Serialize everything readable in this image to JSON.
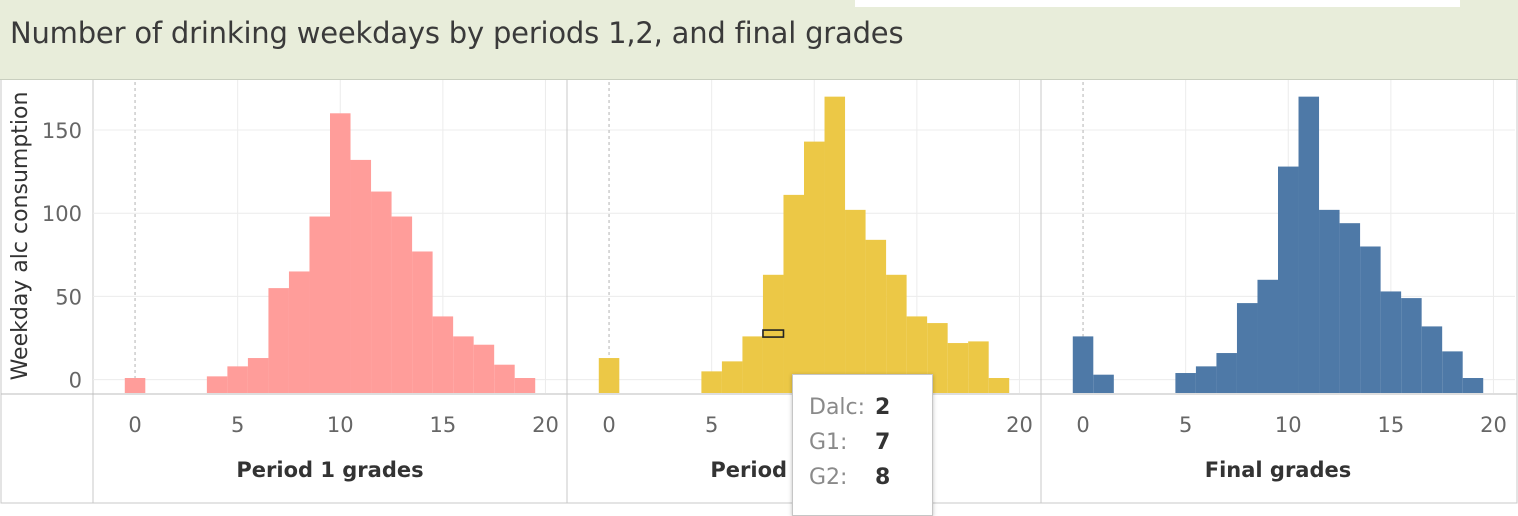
{
  "title": "Number of drinking weekdays by periods 1,2, and final grades",
  "colors": {
    "period1": "#ff9d9a",
    "period2": "#ecc846",
    "final": "#4e79a7",
    "title_band": "#e8edda",
    "grid": "#ececec"
  },
  "tooltip": {
    "rows": [
      {
        "key": "Dalc:",
        "value": "2"
      },
      {
        "key": "G1:",
        "value": "7"
      },
      {
        "key": "G2:",
        "value": "8"
      }
    ]
  },
  "chart_data": {
    "type": "bar",
    "ylabel": "Weekday alc consumption",
    "yticks": [
      0,
      50,
      100,
      150
    ],
    "ylim": [
      -8,
      180
    ],
    "xticks": [
      0,
      5,
      10,
      15,
      20
    ],
    "xlim": [
      -2,
      21
    ],
    "bin_width": 1,
    "grid": true,
    "panels": [
      {
        "name": "Period 1 grades",
        "color": "period1",
        "bins": [
          {
            "x": 0,
            "y": 1
          },
          {
            "x": 4,
            "y": 2
          },
          {
            "x": 5,
            "y": 8
          },
          {
            "x": 6,
            "y": 13
          },
          {
            "x": 7,
            "y": 55
          },
          {
            "x": 8,
            "y": 65
          },
          {
            "x": 9,
            "y": 98
          },
          {
            "x": 10,
            "y": 160
          },
          {
            "x": 11,
            "y": 132
          },
          {
            "x": 12,
            "y": 113
          },
          {
            "x": 13,
            "y": 98
          },
          {
            "x": 14,
            "y": 77
          },
          {
            "x": 15,
            "y": 38
          },
          {
            "x": 16,
            "y": 26
          },
          {
            "x": 17,
            "y": 21
          },
          {
            "x": 18,
            "y": 9
          },
          {
            "x": 19,
            "y": 1
          }
        ]
      },
      {
        "name": "Period 2 grades",
        "color": "period2",
        "bins": [
          {
            "x": 0,
            "y": 13
          },
          {
            "x": 5,
            "y": 5
          },
          {
            "x": 6,
            "y": 11
          },
          {
            "x": 7,
            "y": 26
          },
          {
            "x": 8,
            "y": 63
          },
          {
            "x": 9,
            "y": 111
          },
          {
            "x": 10,
            "y": 143
          },
          {
            "x": 11,
            "y": 170
          },
          {
            "x": 12,
            "y": 102
          },
          {
            "x": 13,
            "y": 84
          },
          {
            "x": 14,
            "y": 63
          },
          {
            "x": 15,
            "y": 38
          },
          {
            "x": 16,
            "y": 34
          },
          {
            "x": 17,
            "y": 22
          },
          {
            "x": 18,
            "y": 23
          },
          {
            "x": 19,
            "y": 1
          }
        ],
        "highlight": {
          "x": 8,
          "y": 28
        }
      },
      {
        "name": "Final grades",
        "color": "final",
        "bins": [
          {
            "x": 0,
            "y": 26
          },
          {
            "x": 1,
            "y": 3
          },
          {
            "x": 5,
            "y": 4
          },
          {
            "x": 6,
            "y": 8
          },
          {
            "x": 7,
            "y": 16
          },
          {
            "x": 8,
            "y": 46
          },
          {
            "x": 9,
            "y": 60
          },
          {
            "x": 10,
            "y": 128
          },
          {
            "x": 11,
            "y": 170
          },
          {
            "x": 12,
            "y": 102
          },
          {
            "x": 13,
            "y": 94
          },
          {
            "x": 14,
            "y": 80
          },
          {
            "x": 15,
            "y": 53
          },
          {
            "x": 16,
            "y": 49
          },
          {
            "x": 17,
            "y": 32
          },
          {
            "x": 18,
            "y": 17
          },
          {
            "x": 19,
            "y": 1
          }
        ]
      }
    ]
  }
}
